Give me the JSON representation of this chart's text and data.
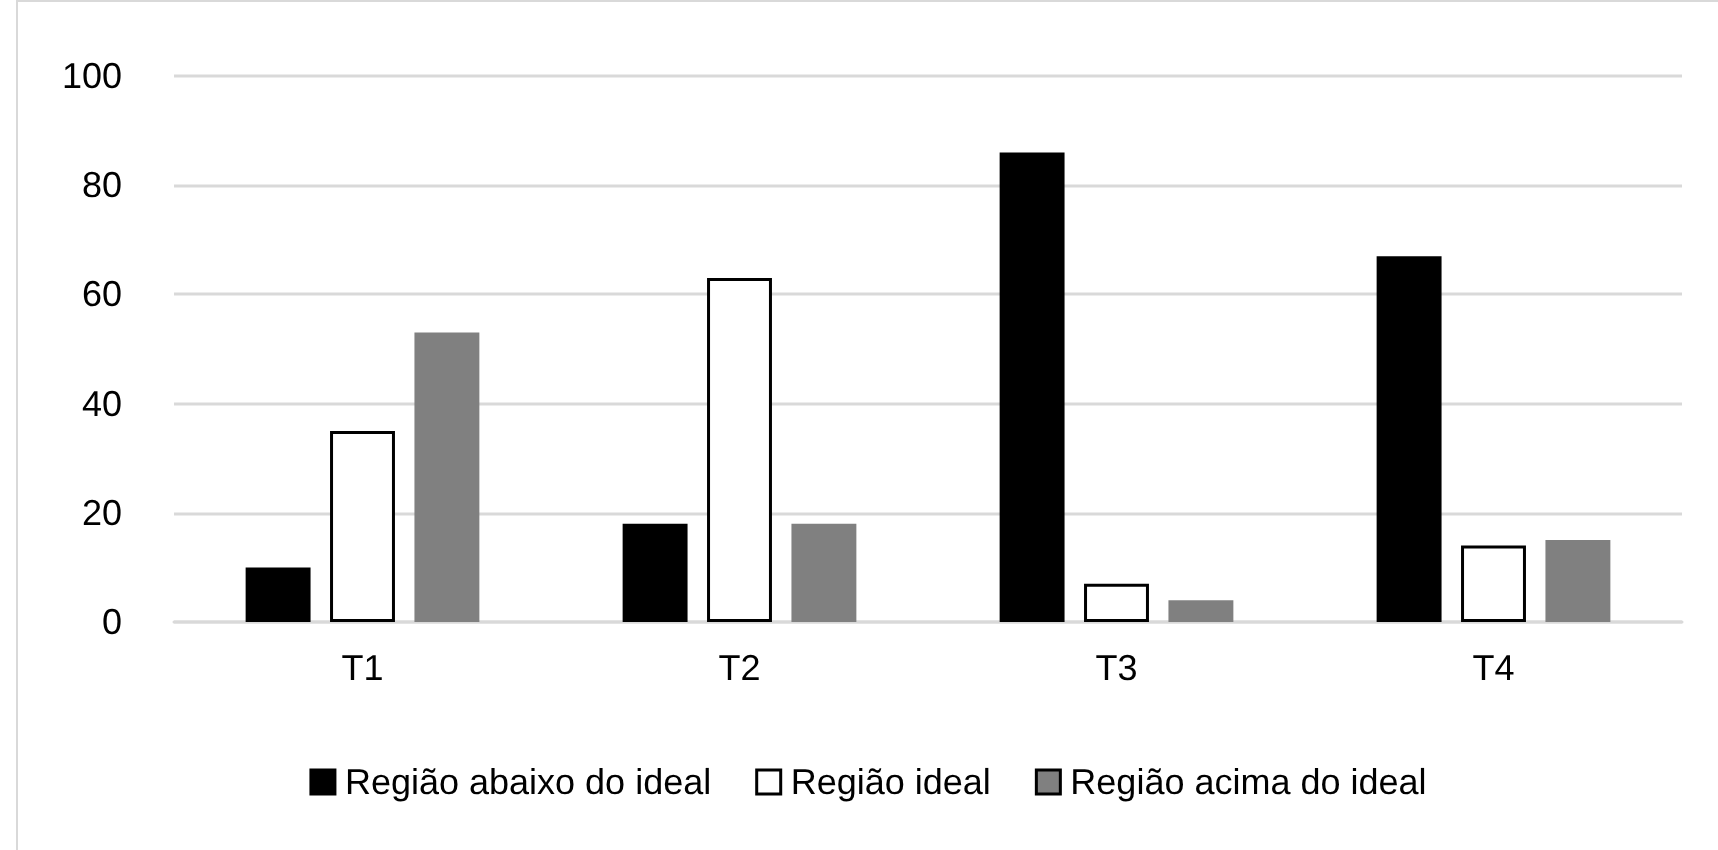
{
  "chart_data": {
    "type": "bar",
    "categories": [
      "T1",
      "T2",
      "T3",
      "T4"
    ],
    "series": [
      {
        "name": "Região abaixo do ideal",
        "color": "#000000",
        "values": [
          10,
          18,
          86,
          67
        ]
      },
      {
        "name": "Região ideal",
        "color": "#ffffff",
        "values": [
          35,
          63,
          7,
          14
        ]
      },
      {
        "name": "Região acima do ideal",
        "color": "#808080",
        "values": [
          53,
          18,
          4,
          15
        ]
      }
    ],
    "ylim": [
      0,
      100
    ],
    "yticks": [
      0,
      20,
      40,
      60,
      80,
      100
    ],
    "grid": "y",
    "legend": "bottom"
  }
}
